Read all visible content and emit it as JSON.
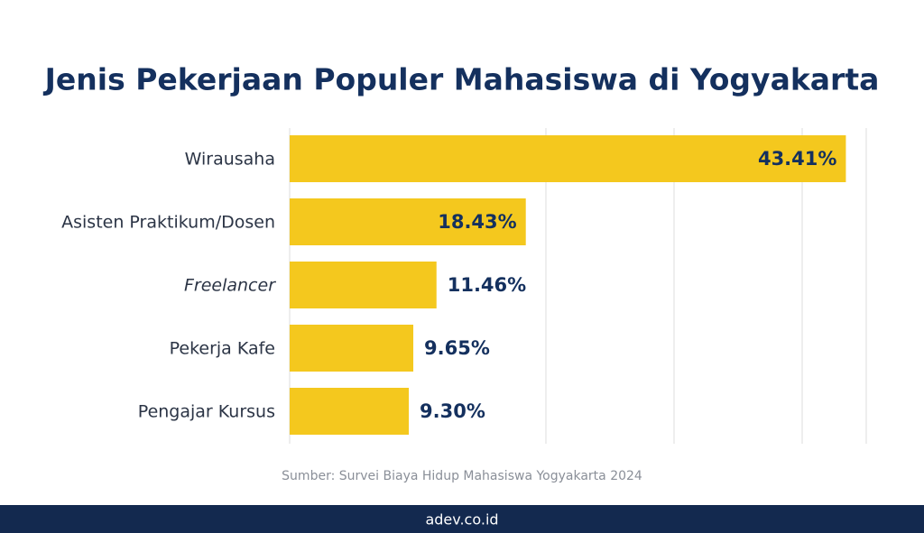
{
  "chart_data": {
    "type": "hbar",
    "title": "Jenis Pekerjaan Populer Mahasiswa di Yogyakarta",
    "categories": [
      "Wirausaha",
      "Asisten Praktikum/Dosen",
      "Freelancer",
      "Pekerja Kafe",
      "Pengajar Kursus"
    ],
    "values": [
      43.41,
      18.43,
      11.46,
      9.65,
      9.3
    ],
    "value_labels": [
      "43.41%",
      "18.43%",
      "11.46%",
      "9.65%",
      "9.30%"
    ],
    "color": "#f4c81e",
    "xlim": [
      0,
      45
    ],
    "xticks": [
      0,
      20,
      30,
      40,
      45
    ],
    "grid": true,
    "source": "Sumber: Survei Biaya Hidup Mahasiswa Yogyakarta 2024",
    "footer": "adev.co.id"
  }
}
